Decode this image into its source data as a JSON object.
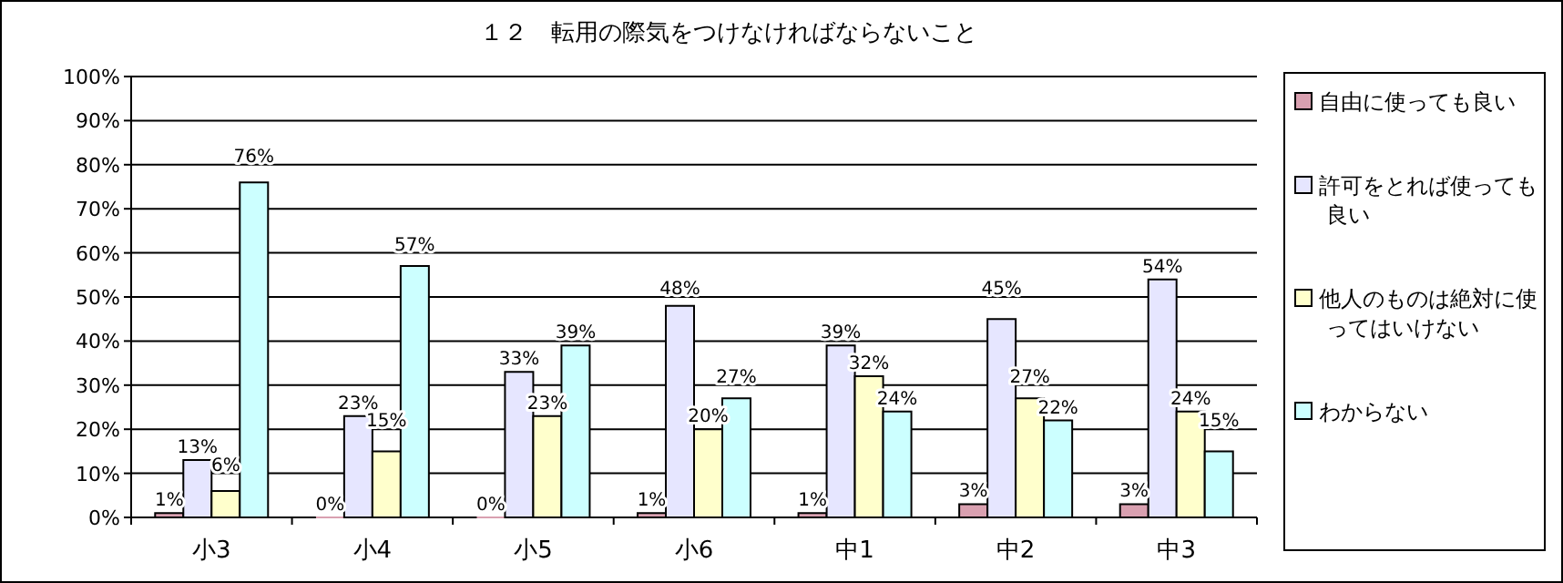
{
  "chart_data": {
    "type": "bar",
    "title": "１２　転用の際気をつけなければならないこと",
    "categories": [
      "小3",
      "小4",
      "小5",
      "小6",
      "中1",
      "中2",
      "中3"
    ],
    "series": [
      {
        "name": "自由に使っても良い",
        "color": "#d9a0b0",
        "values": [
          1,
          0,
          0,
          1,
          1,
          3,
          3
        ],
        "value_labels": [
          "1%",
          "0%",
          "0%",
          "1%",
          "1%",
          "3%",
          "3%"
        ]
      },
      {
        "name": "許可をとれば使っても良い",
        "color": "#e6e6ff",
        "values": [
          13,
          23,
          33,
          48,
          39,
          45,
          54
        ],
        "value_labels": [
          "13%",
          "23%",
          "33%",
          "48%",
          "39%",
          "45%",
          "54%"
        ]
      },
      {
        "name": "他人のものは絶対に使ってはいけない",
        "color": "#ffffcc",
        "values": [
          6,
          15,
          23,
          20,
          32,
          27,
          24
        ],
        "value_labels": [
          "6%",
          "15%",
          "23%",
          "20%",
          "32%",
          "27%",
          "24%"
        ]
      },
      {
        "name": "わからない",
        "color": "#ccffff",
        "values": [
          76,
          57,
          39,
          27,
          24,
          22,
          15
        ],
        "value_labels": [
          "76%",
          "57%",
          "39%",
          "27%",
          "24%",
          "22%",
          "15%"
        ]
      }
    ],
    "ylim": [
      0,
      100
    ],
    "yticks": [
      {
        "value": 0,
        "label": "0%"
      },
      {
        "value": 10,
        "label": "10%"
      },
      {
        "value": 20,
        "label": "20%"
      },
      {
        "value": 30,
        "label": "30%"
      },
      {
        "value": 40,
        "label": "40%"
      },
      {
        "value": 50,
        "label": "50%"
      },
      {
        "value": 60,
        "label": "60%"
      },
      {
        "value": 70,
        "label": "70%"
      },
      {
        "value": 80,
        "label": "80%"
      },
      {
        "value": 90,
        "label": "90%"
      },
      {
        "value": 100,
        "label": "100%"
      }
    ],
    "grid": "y",
    "legend": "right"
  }
}
